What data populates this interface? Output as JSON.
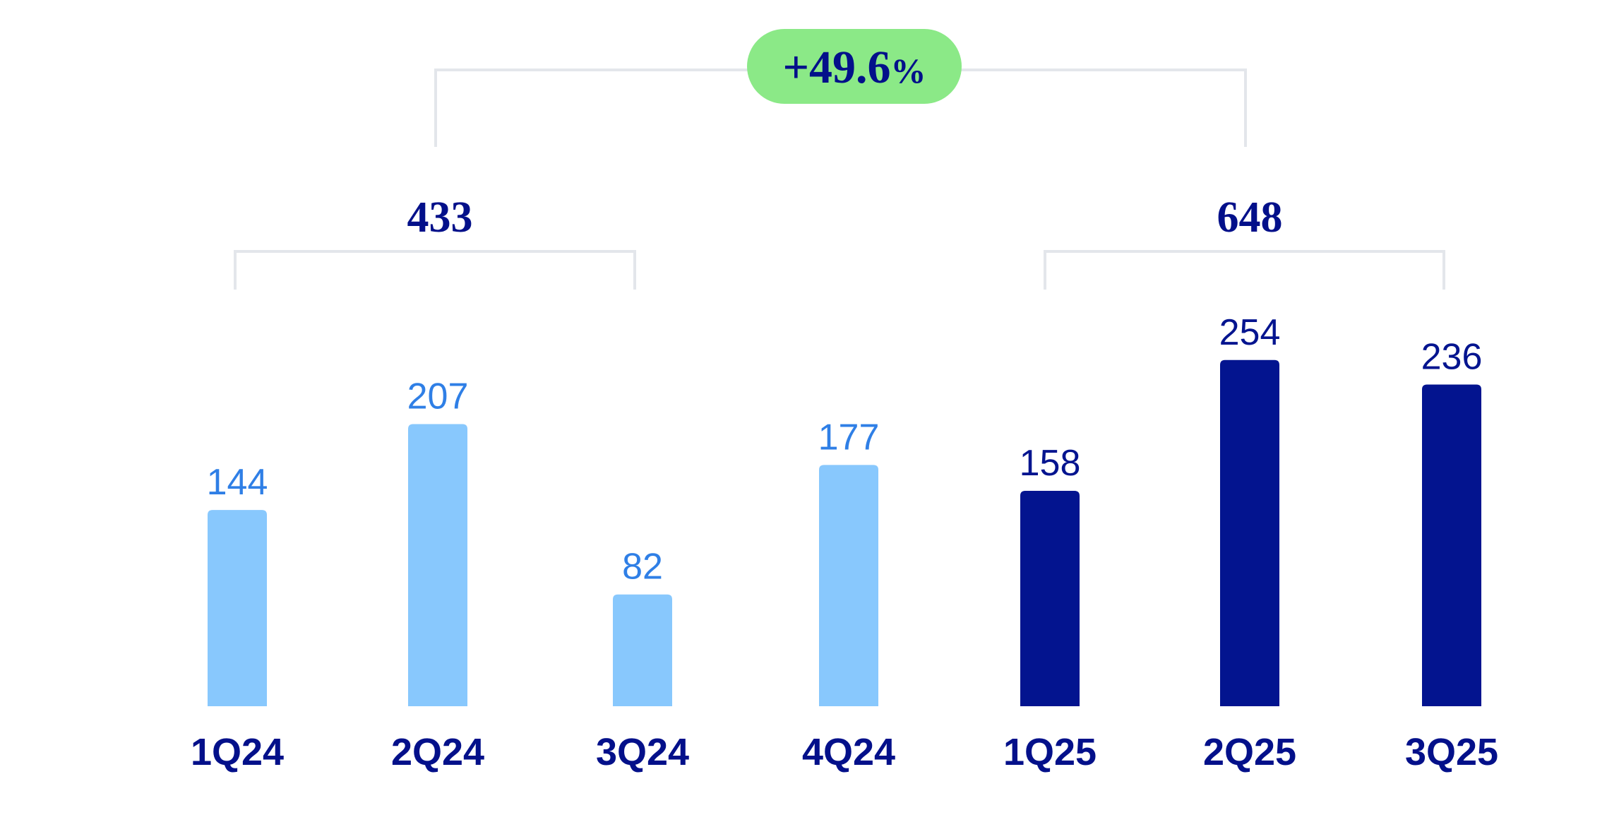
{
  "chart_data": {
    "type": "bar",
    "categories": [
      "1Q24",
      "2Q24",
      "3Q24",
      "4Q24",
      "1Q25",
      "2Q25",
      "3Q25"
    ],
    "values": [
      144,
      207,
      82,
      177,
      158,
      254,
      236
    ],
    "value_labels": [
      "144",
      "207",
      "82",
      "177",
      "158",
      "254",
      "236"
    ],
    "bar_groups": [
      "2024",
      "2024",
      "2024",
      "2024",
      "2025",
      "2025",
      "2025"
    ],
    "brackets": [
      {
        "value": "433",
        "from_category": "1Q24",
        "to_category": "3Q24"
      },
      {
        "value": "648",
        "from_category": "1Q25",
        "to_category": "3Q25"
      }
    ],
    "growth": {
      "number": "+49.6",
      "unit": "%"
    },
    "legend": "none",
    "grid": false
  },
  "colors": {
    "bar_2024": "#88c8fd",
    "value_2024": "#2f7fe6",
    "bar_2025": "#03148f",
    "value_2025": "#03148f",
    "category_text": "#03108a",
    "bracket_line": "#e3e6eb",
    "growth_badge": "#8be987",
    "growth_text": "#03108a"
  }
}
